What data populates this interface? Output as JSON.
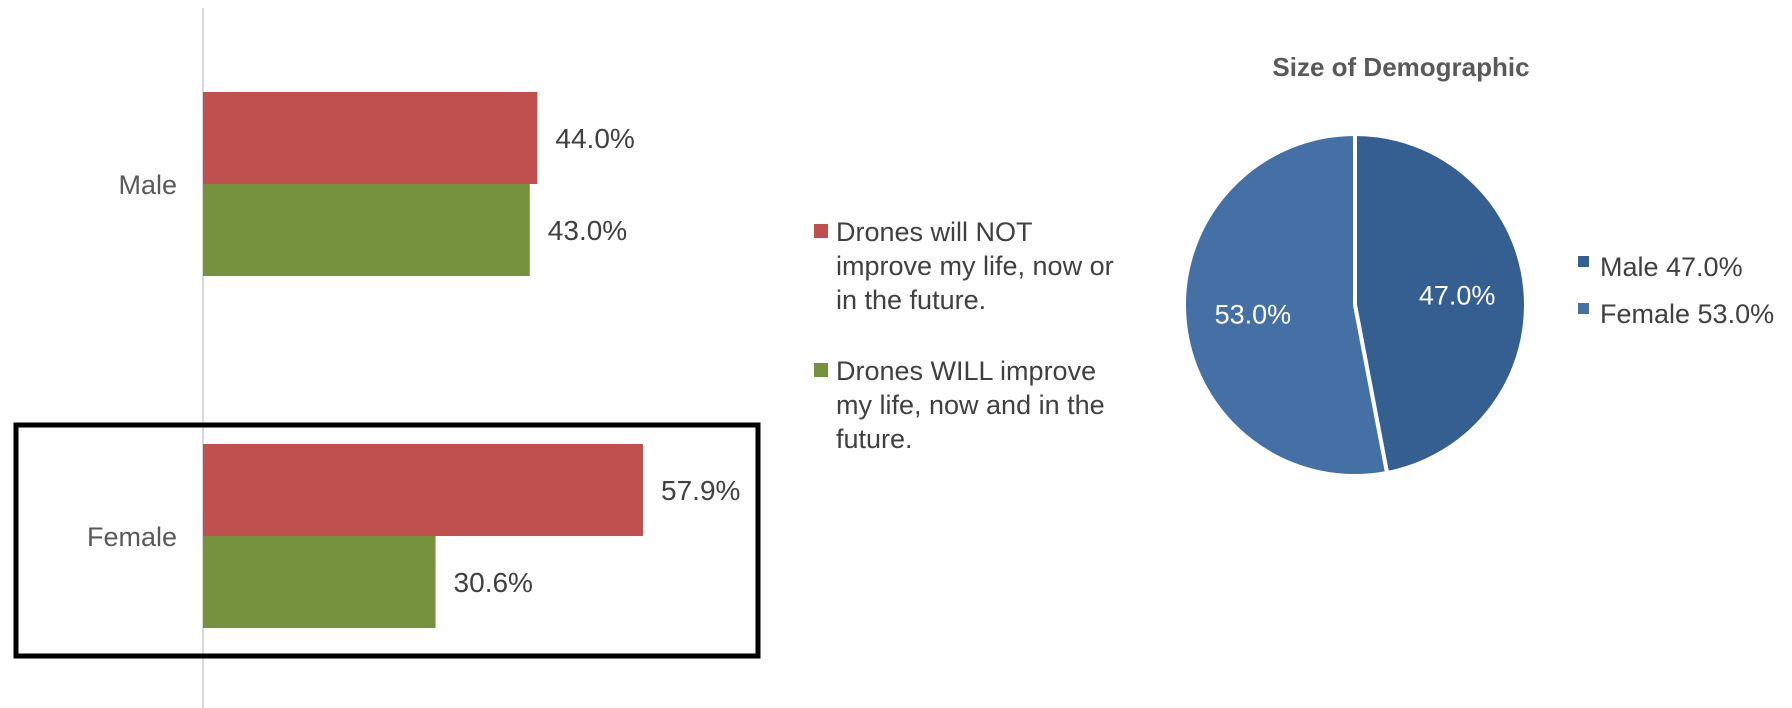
{
  "chart_data": [
    {
      "type": "bar",
      "orientation": "horizontal",
      "categories": [
        "Male",
        "Female"
      ],
      "series": [
        {
          "name": "Drones will NOT improve my life, now or in the future.",
          "values": [
            44.0,
            57.9
          ],
          "labels": [
            "44.0%",
            "57.9%"
          ],
          "color": "#C0504D"
        },
        {
          "name": "Drones WILL improve my life, now and in the future.",
          "values": [
            43.0,
            30.6
          ],
          "labels": [
            "43.0%",
            "30.6%"
          ],
          "color": "#76923C"
        }
      ],
      "xlim": [
        0,
        100
      ],
      "grid": false,
      "legend_position": "right",
      "highlight_category": "Female",
      "title": "",
      "xlabel": "",
      "ylabel": ""
    },
    {
      "type": "pie",
      "title": "Size of Demographic",
      "slices": [
        {
          "name": "Male",
          "value": 47.0,
          "label": "47.0%",
          "legend": "Male 47.0%",
          "color": "#365F91"
        },
        {
          "name": "Female",
          "value": 53.0,
          "label": "53.0%",
          "legend": "Female 53.0%",
          "color": "#4470A5"
        }
      ],
      "legend_position": "right"
    }
  ]
}
